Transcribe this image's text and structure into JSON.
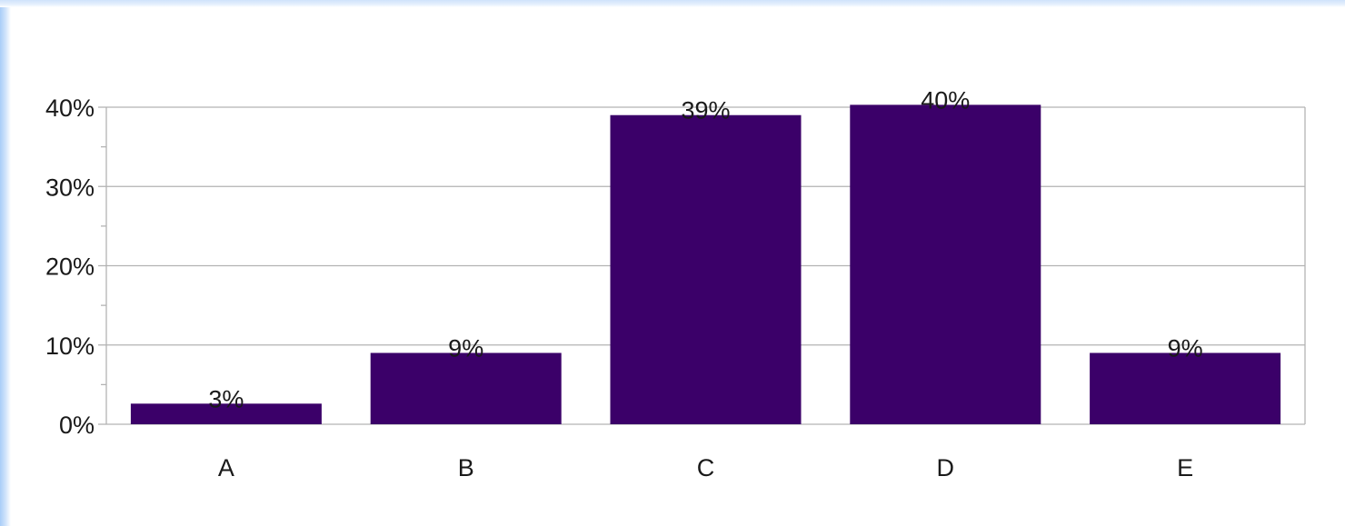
{
  "chart_data": {
    "type": "bar",
    "categories": [
      "A",
      "B",
      "C",
      "D",
      "E"
    ],
    "values": [
      2.6,
      9,
      39,
      40.3,
      9
    ],
    "data_labels": [
      "3%",
      "9%",
      "39%",
      "40%",
      "9%"
    ],
    "ytick_values": [
      0,
      10,
      20,
      30,
      40
    ],
    "ytick_labels": [
      "0%",
      "10%",
      "20%",
      "30%",
      "40%"
    ],
    "ylim": [
      0,
      40
    ],
    "grid": true,
    "legend": "none",
    "bar_color": "#3b0069"
  }
}
